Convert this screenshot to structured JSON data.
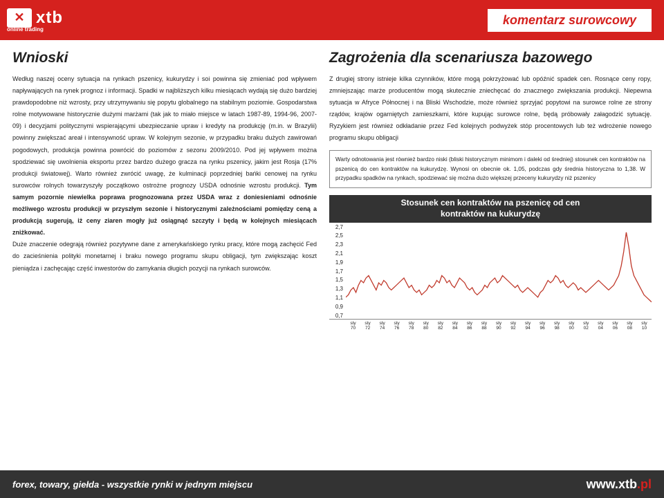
{
  "header": {
    "logo_mark": "✕",
    "logo_text": "xtb",
    "logo_sub": "online trading",
    "title": "komentarz surowcowy"
  },
  "left": {
    "heading": "Wnioski",
    "p1a": "Według naszej oceny sytuacja na rynkach pszenicy, kukurydzy i soi powinna się zmieniać pod wpływem napływających na rynek prognoz i informacji. Spadki w najbliższych kilku miesiącach wydają się dużo bardziej prawdopodobne niż wzrosty, przy utrzymywaniu się popytu globalnego na stabilnym poziomie. Gospodarstwa rolne motywowane historycznie dużymi marżami (tak jak to miało miejsce w latach 1987-89, 1994-96, 2007-09) i decyzjami politycznymi wspierającymi ubezpieczanie upraw i kredyty na produkcję (m.in. w Brazylii) powinny zwiększać areał i intensywność upraw. W kolejnym sezonie, w przypadku braku dużych zawirowań pogodowych, produkcja powinna powrócić do poziomów z sezonu 2009/2010. Pod jej wpływem można spodziewać się uwolnienia eksportu przez bardzo dużego gracza na rynku pszenicy, jakim jest Rosja (17% produkcji światowej). Warto również zwrócić uwagę, że kulminacji poprzedniej bańki cenowej na rynku surowców rolnych towarzyszyły początkowo ostrożne prognozy USDA odnośnie wzrostu produkcji. ",
    "p1b": "Tym samym pozornie niewielka poprawa prognozowana przez USDA wraz z doniesieniami odnośnie możliwego wzrostu produkcji w przyszłym sezonie i historycznymi zależnościami pomiędzy ceną a produkcją sugerują, iż ceny ziaren mogły już osiągnąć szczyty i będą w kolejnych miesiącach zniżkować.",
    "p2": "Duże znaczenie odegrają również pozytywne dane z amerykańskiego rynku pracy, które mogą zachęcić Fed do zacieśnienia polityki monetarnej i braku nowego programu skupu obligacji, tym zwiększając koszt pieniądza i zachęcając część inwestorów do zamykania długich pozycji na rynkach surowców."
  },
  "right": {
    "heading": "Zagrożenia dla scenariusza bazowego",
    "p1": "Z drugiej strony istnieje kilka czynników, które mogą pokrzyżować lub opóźnić spadek cen. Rosnące ceny ropy, zmniejszając marże producentów mogą skutecznie zniechęcać do znacznego zwiększania produkcji. Niepewna sytuacja w Afryce Północnej i na Bliski Wschodzie, może również sprzyjać popytowi na surowce rolne ze strony rządów, krajów ogarniętych zamieszkami, które kupując surowce rolne, będą próbowały załagodzić sytuację. Ryzykiem jest również odkładanie przez Fed kolejnych podwyżek stóp procentowych lub też wdrożenie nowego programu skupu obligacji",
    "callout": "Warty odnotowania jest również bardzo niski (bliski historycznym minimom i daleki od średniej) stosunek cen kontraktów na pszenicą do cen kontraktów na kukurydzę. Wynosi on obecnie ok. 1,05, podczas gdy średnia historyczna to 1,38. W przypadku spadków na rynkach, spodziewać się można dużo większej przeceny kukurydzy niż pszenicy"
  },
  "chart": {
    "title_l1": "Stosunek cen kontraktów na pszenicę od cen",
    "title_l2": "kontraktów na kukurydzę",
    "y_ticks": [
      "0,7",
      "0,9",
      "1,1",
      "1,3",
      "1,5",
      "1,7",
      "1,9",
      "2,1",
      "2,3",
      "2,5",
      "2,7"
    ],
    "y_min": 0.7,
    "y_max": 2.7,
    "x_years": [
      "70",
      "72",
      "74",
      "76",
      "78",
      "80",
      "82",
      "84",
      "86",
      "88",
      "90",
      "92",
      "94",
      "96",
      "98",
      "00",
      "02",
      "04",
      "06",
      "08",
      "10"
    ],
    "x_top": "sty",
    "series_color": "#c0392b",
    "line_width": 1.2,
    "background": "#ffffff",
    "values": [
      1.15,
      1.2,
      1.3,
      1.35,
      1.25,
      1.4,
      1.5,
      1.45,
      1.55,
      1.6,
      1.5,
      1.4,
      1.3,
      1.45,
      1.4,
      1.5,
      1.45,
      1.35,
      1.3,
      1.35,
      1.4,
      1.45,
      1.5,
      1.55,
      1.45,
      1.35,
      1.4,
      1.3,
      1.25,
      1.3,
      1.2,
      1.25,
      1.3,
      1.4,
      1.35,
      1.4,
      1.5,
      1.45,
      1.6,
      1.55,
      1.45,
      1.5,
      1.4,
      1.35,
      1.45,
      1.55,
      1.5,
      1.45,
      1.35,
      1.3,
      1.35,
      1.25,
      1.2,
      1.25,
      1.3,
      1.4,
      1.35,
      1.45,
      1.5,
      1.55,
      1.45,
      1.5,
      1.6,
      1.55,
      1.5,
      1.45,
      1.4,
      1.35,
      1.4,
      1.3,
      1.25,
      1.3,
      1.35,
      1.3,
      1.25,
      1.2,
      1.15,
      1.25,
      1.3,
      1.4,
      1.5,
      1.45,
      1.5,
      1.6,
      1.55,
      1.45,
      1.5,
      1.4,
      1.35,
      1.4,
      1.45,
      1.4,
      1.3,
      1.35,
      1.3,
      1.25,
      1.3,
      1.35,
      1.4,
      1.45,
      1.5,
      1.45,
      1.4,
      1.35,
      1.3,
      1.35,
      1.4,
      1.5,
      1.6,
      1.8,
      2.1,
      2.5,
      2.2,
      1.8,
      1.6,
      1.5,
      1.4,
      1.3,
      1.2,
      1.15,
      1.1,
      1.05
    ]
  },
  "footer": {
    "left": "forex, towary, giełda - wszystkie rynki w jednym miejscu",
    "url_a": "www.",
    "url_b": "xtb",
    "url_c": ".pl"
  }
}
